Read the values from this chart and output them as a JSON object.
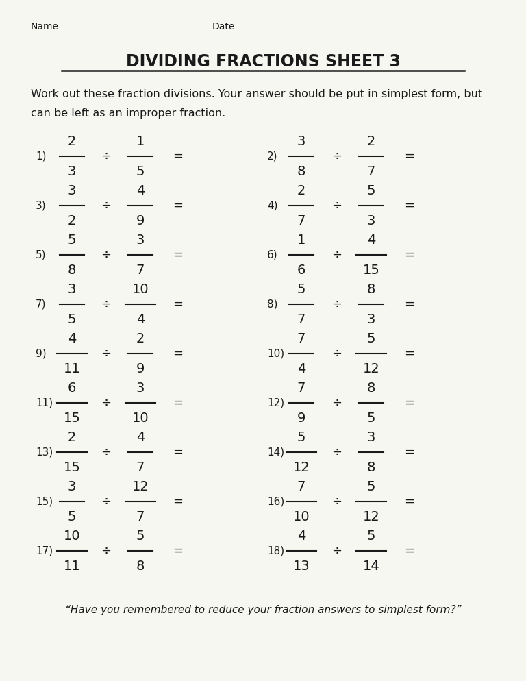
{
  "title": "DIVIDING FRACTIONS SHEET 3",
  "name_label": "Name",
  "date_label": "Date",
  "instruction1": "Work out these fraction divisions. Your answer should be put in simplest form, but",
  "instruction2": "can be left as an improper fraction.",
  "footer": "“Have you remembered to reduce your fraction answers to simplest form?”",
  "bg_color": "#f7f7f2",
  "text_color": "#1a1a1a",
  "problems": [
    {
      "num": "1",
      "n1": "2",
      "d1": "3",
      "n2": "1",
      "d2": "5"
    },
    {
      "num": "2",
      "n1": "3",
      "d1": "8",
      "n2": "2",
      "d2": "7"
    },
    {
      "num": "3",
      "n1": "3",
      "d1": "2",
      "n2": "4",
      "d2": "9"
    },
    {
      "num": "4",
      "n1": "2",
      "d1": "7",
      "n2": "5",
      "d2": "3"
    },
    {
      "num": "5",
      "n1": "5",
      "d1": "8",
      "n2": "3",
      "d2": "7"
    },
    {
      "num": "6",
      "n1": "1",
      "d1": "6",
      "n2": "4",
      "d2": "15"
    },
    {
      "num": "7",
      "n1": "3",
      "d1": "5",
      "n2": "10",
      "d2": "4"
    },
    {
      "num": "8",
      "n1": "5",
      "d1": "7",
      "n2": "8",
      "d2": "3"
    },
    {
      "num": "9",
      "n1": "4",
      "d1": "11",
      "n2": "2",
      "d2": "9"
    },
    {
      "num": "10",
      "n1": "7",
      "d1": "4",
      "n2": "5",
      "d2": "12"
    },
    {
      "num": "11",
      "n1": "6",
      "d1": "15",
      "n2": "3",
      "d2": "10"
    },
    {
      "num": "12",
      "n1": "7",
      "d1": "9",
      "n2": "8",
      "d2": "5"
    },
    {
      "num": "13",
      "n1": "2",
      "d1": "15",
      "n2": "4",
      "d2": "7"
    },
    {
      "num": "14",
      "n1": "5",
      "d1": "12",
      "n2": "3",
      "d2": "8"
    },
    {
      "num": "15",
      "n1": "3",
      "d1": "5",
      "n2": "12",
      "d2": "7"
    },
    {
      "num": "16",
      "n1": "7",
      "d1": "10",
      "n2": "5",
      "d2": "12"
    },
    {
      "num": "17",
      "n1": "10",
      "d1": "11",
      "n2": "5",
      "d2": "8"
    },
    {
      "num": "18",
      "n1": "4",
      "d1": "13",
      "n2": "5",
      "d2": "14"
    }
  ]
}
